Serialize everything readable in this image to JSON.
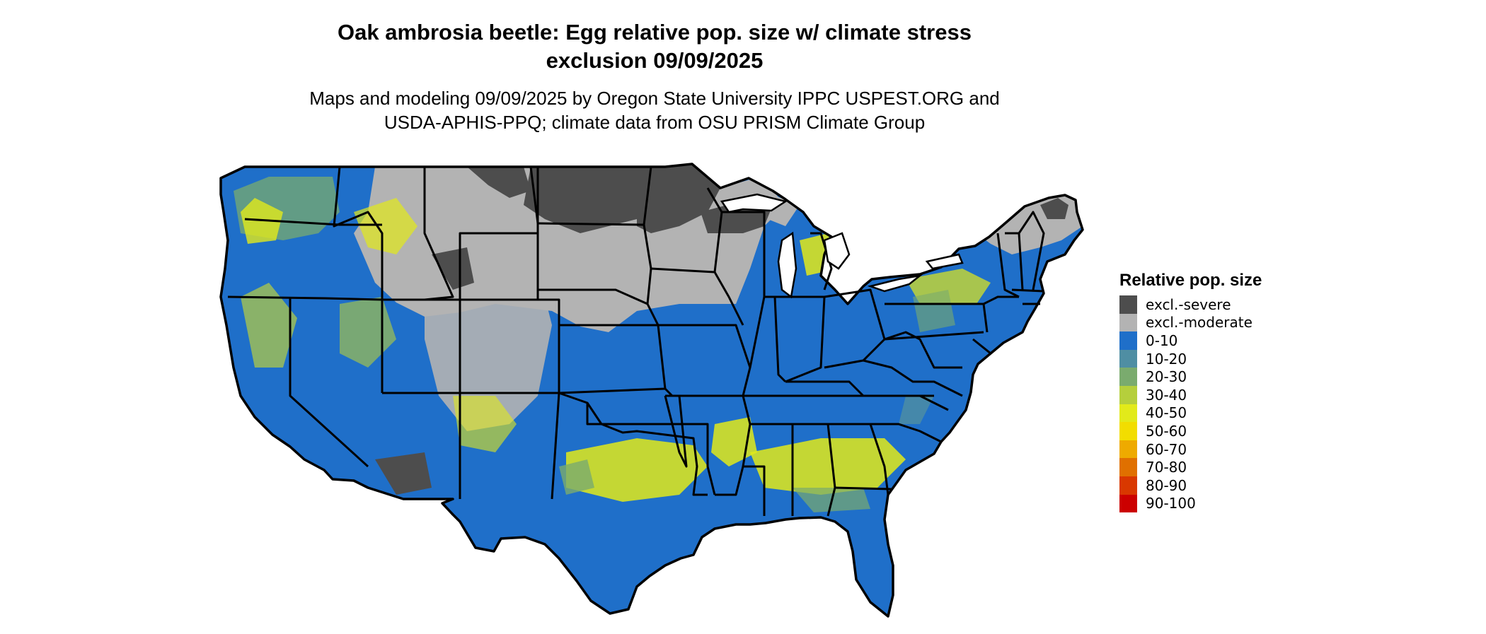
{
  "header": {
    "title_line1": "Oak ambrosia beetle: Egg relative pop. size w/ climate stress",
    "title_line2": "exclusion 09/09/2025",
    "subtitle_line1": "Maps and modeling 09/09/2025 by Oregon State University IPPC USPEST.ORG and",
    "subtitle_line2": "USDA-APHIS-PPQ; climate data from OSU PRISM Climate Group"
  },
  "map": {
    "region": "Contiguous United States",
    "colors": {
      "border": "#000000",
      "excl_severe": "#4d4d4d",
      "excl_moderate": "#b3b3b3",
      "base": "#1f6fc9",
      "c10_20": "#4f8ea3",
      "c20_30": "#7aab6e",
      "c30_40": "#b5cf3c",
      "c40_50": "#e2ea1a",
      "c50_60": "#f2dd00"
    }
  },
  "legend": {
    "title": "Relative pop. size",
    "items": [
      {
        "label": "excl.-severe",
        "color": "#4d4d4d"
      },
      {
        "label": "excl.-moderate",
        "color": "#b3b3b3"
      },
      {
        "label": "0-10",
        "color": "#1f6fc9"
      },
      {
        "label": "10-20",
        "color": "#4f8ea3"
      },
      {
        "label": "20-30",
        "color": "#7aab6e"
      },
      {
        "label": "30-40",
        "color": "#b5cf3c"
      },
      {
        "label": "40-50",
        "color": "#e2ea1a"
      },
      {
        "label": "50-60",
        "color": "#f2dd00"
      },
      {
        "label": "60-70",
        "color": "#eeaa00"
      },
      {
        "label": "70-80",
        "color": "#e07000"
      },
      {
        "label": "80-90",
        "color": "#d93800"
      },
      {
        "label": "90-100",
        "color": "#cc0000"
      }
    ]
  }
}
